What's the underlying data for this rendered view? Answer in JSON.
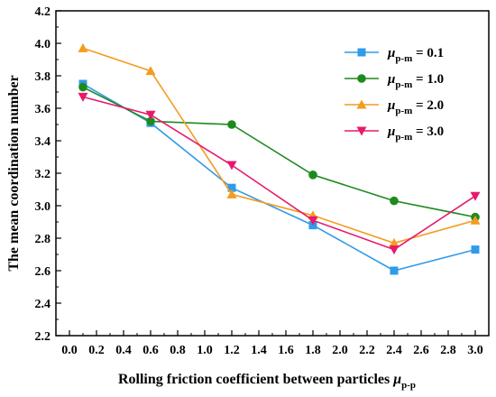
{
  "chart_data": {
    "type": "line",
    "xlabel": "Rolling friction coefficient between particles",
    "xlabel_symbol": "μ",
    "xlabel_subscript": "p-p",
    "ylabel": "The mean coordination number",
    "xlim": [
      -0.1,
      3.1
    ],
    "ylim": [
      2.2,
      4.2
    ],
    "x_ticks": [
      "0.0",
      "0.2",
      "0.4",
      "0.6",
      "0.8",
      "1.0",
      "1.2",
      "1.4",
      "1.6",
      "1.8",
      "2.0",
      "2.2",
      "2.4",
      "2.6",
      "2.8",
      "3.0"
    ],
    "y_ticks": [
      "2.2",
      "2.4",
      "2.6",
      "2.8",
      "3.0",
      "3.2",
      "3.4",
      "3.6",
      "3.8",
      "4.0",
      "4.2"
    ],
    "legend_position": "top-right",
    "grid": false,
    "x": [
      0.1,
      0.6,
      1.2,
      1.8,
      2.4,
      3.0
    ],
    "series": [
      {
        "symbol": "μ",
        "subscript": "p-m",
        "label_value": "= 0.1",
        "color": "#2f9bea",
        "marker": "square",
        "values": [
          3.75,
          3.51,
          3.11,
          2.88,
          2.6,
          2.73
        ]
      },
      {
        "symbol": "μ",
        "subscript": "p-m",
        "label_value": "= 1.0",
        "color": "#1e8a1e",
        "marker": "circle",
        "values": [
          3.73,
          3.52,
          3.5,
          3.19,
          3.03,
          2.93
        ]
      },
      {
        "symbol": "μ",
        "subscript": "p-m",
        "label_value": "= 2.0",
        "color": "#f39c1f",
        "marker": "triangle-up",
        "values": [
          3.97,
          3.83,
          3.07,
          2.94,
          2.77,
          2.91
        ]
      },
      {
        "symbol": "μ",
        "subscript": "p-m",
        "label_value": "= 3.0",
        "color": "#e8186d",
        "marker": "triangle-down",
        "values": [
          3.67,
          3.56,
          3.25,
          2.91,
          2.73,
          3.06
        ]
      }
    ]
  }
}
